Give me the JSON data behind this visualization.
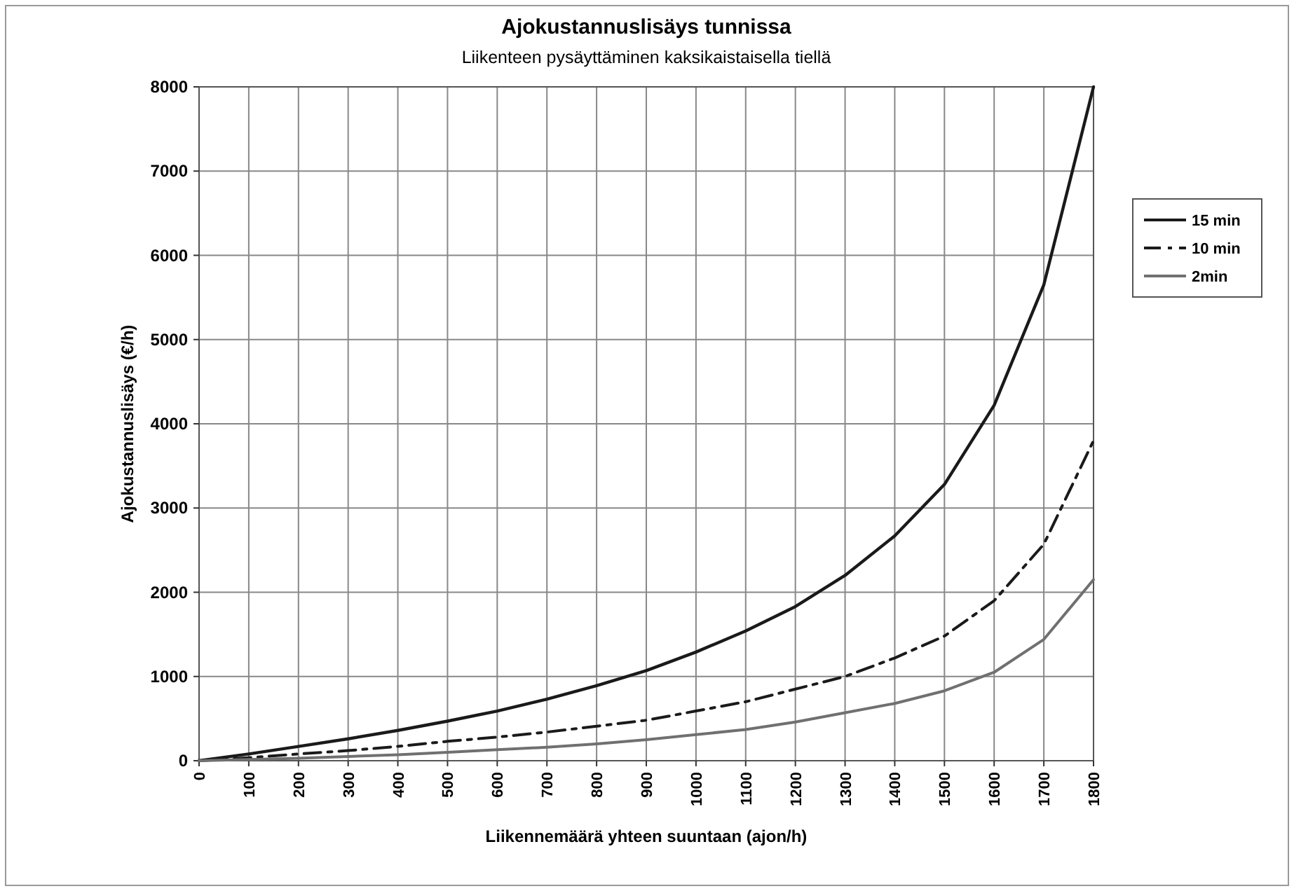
{
  "chart_data": {
    "type": "line",
    "title": "Ajokustannuslisäys tunnissa",
    "subtitle": "Liikenteen pysäyttäminen kaksikaistaisella tiellä",
    "xlabel": "Liikennemäärä yhteen suuntaan (ajon/h)",
    "ylabel": "Ajokustannuslisäys (€/h)",
    "x": [
      0,
      100,
      200,
      300,
      400,
      500,
      600,
      700,
      800,
      900,
      1000,
      1100,
      1200,
      1300,
      1400,
      1500,
      1600,
      1700,
      1800
    ],
    "xlim": [
      0,
      1800
    ],
    "xticks": [
      0,
      100,
      200,
      300,
      400,
      500,
      600,
      700,
      800,
      900,
      1000,
      1100,
      1200,
      1300,
      1400,
      1500,
      1600,
      1700,
      1800
    ],
    "ylim": [
      0,
      8000
    ],
    "yticks": [
      0,
      1000,
      2000,
      3000,
      4000,
      5000,
      6000,
      7000,
      8000
    ],
    "grid": true,
    "legend": "right",
    "marker": "none",
    "series": [
      {
        "name": "15 min",
        "color": "#1a1a1a",
        "line_style": "solid",
        "values": [
          0,
          80,
          170,
          260,
          360,
          470,
          590,
          730,
          890,
          1070,
          1290,
          1540,
          1830,
          2200,
          2670,
          3280,
          4220,
          5650,
          8000
        ]
      },
      {
        "name": "10 min",
        "color": "#1a1a1a",
        "line_style": "dashed",
        "values": [
          0,
          35,
          80,
          120,
          170,
          230,
          280,
          340,
          410,
          480,
          590,
          700,
          850,
          1000,
          1220,
          1480,
          1900,
          2570,
          3800
        ]
      },
      {
        "name": "2min",
        "color": "#707070",
        "line_style": "solid",
        "values": [
          0,
          15,
          30,
          50,
          70,
          100,
          130,
          160,
          200,
          250,
          310,
          370,
          460,
          570,
          680,
          830,
          1050,
          1440,
          2150
        ]
      }
    ]
  }
}
